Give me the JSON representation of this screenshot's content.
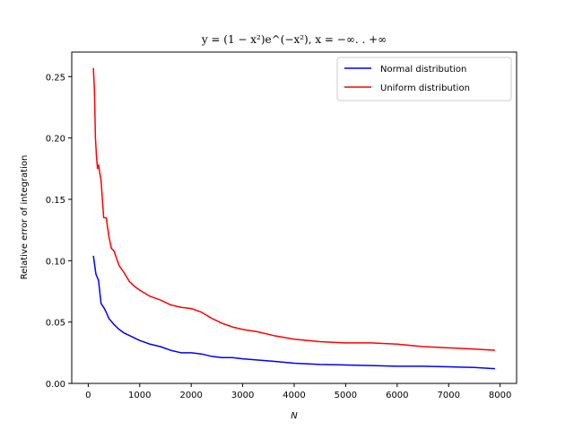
{
  "chart_data": {
    "type": "line",
    "title": "y = (1 − x²)e^(−x²),  x = −∞. . +∞",
    "xlabel": "N",
    "ylabel": "Relative error of integration",
    "xlim": [
      -320,
      8320
    ],
    "ylim": [
      0.0,
      0.27
    ],
    "xticks": [
      0,
      1000,
      2000,
      3000,
      4000,
      5000,
      6000,
      7000,
      8000
    ],
    "yticks": [
      0.0,
      0.05,
      0.1,
      0.15,
      0.2,
      0.25
    ],
    "xtick_labels": [
      "0",
      "1000",
      "2000",
      "3000",
      "4000",
      "5000",
      "6000",
      "7000",
      "8000"
    ],
    "ytick_labels": [
      "0.00",
      "0.05",
      "0.10",
      "0.15",
      "0.20",
      "0.25"
    ],
    "grid": false,
    "legend_position": "top-right",
    "series": [
      {
        "name": "Normal distribution",
        "color": "#0000ff",
        "points": [
          [
            100,
            0.104
          ],
          [
            150,
            0.089
          ],
          [
            200,
            0.084
          ],
          [
            250,
            0.065
          ],
          [
            300,
            0.062
          ],
          [
            350,
            0.058
          ],
          [
            400,
            0.053
          ],
          [
            500,
            0.048
          ],
          [
            600,
            0.044
          ],
          [
            700,
            0.041
          ],
          [
            800,
            0.039
          ],
          [
            900,
            0.037
          ],
          [
            1000,
            0.035
          ],
          [
            1200,
            0.032
          ],
          [
            1400,
            0.03
          ],
          [
            1600,
            0.027
          ],
          [
            1800,
            0.025
          ],
          [
            2000,
            0.025
          ],
          [
            2200,
            0.024
          ],
          [
            2400,
            0.022
          ],
          [
            2600,
            0.021
          ],
          [
            2800,
            0.021
          ],
          [
            3000,
            0.02
          ],
          [
            3300,
            0.019
          ],
          [
            3600,
            0.018
          ],
          [
            4000,
            0.0165
          ],
          [
            4500,
            0.0155
          ],
          [
            5000,
            0.015
          ],
          [
            5500,
            0.0145
          ],
          [
            6000,
            0.014
          ],
          [
            6500,
            0.014
          ],
          [
            7000,
            0.0135
          ],
          [
            7500,
            0.013
          ],
          [
            7900,
            0.012
          ]
        ]
      },
      {
        "name": "Uniform distribution",
        "color": "#ff0000",
        "points": [
          [
            100,
            0.257
          ],
          [
            120,
            0.24
          ],
          [
            140,
            0.2
          ],
          [
            160,
            0.185
          ],
          [
            180,
            0.175
          ],
          [
            200,
            0.178
          ],
          [
            250,
            0.165
          ],
          [
            300,
            0.135
          ],
          [
            350,
            0.135
          ],
          [
            400,
            0.12
          ],
          [
            450,
            0.11
          ],
          [
            500,
            0.108
          ],
          [
            600,
            0.096
          ],
          [
            700,
            0.09
          ],
          [
            800,
            0.083
          ],
          [
            900,
            0.079
          ],
          [
            1000,
            0.076
          ],
          [
            1200,
            0.071
          ],
          [
            1400,
            0.068
          ],
          [
            1600,
            0.064
          ],
          [
            1800,
            0.062
          ],
          [
            2000,
            0.061
          ],
          [
            2200,
            0.058
          ],
          [
            2400,
            0.053
          ],
          [
            2600,
            0.049
          ],
          [
            2800,
            0.046
          ],
          [
            3000,
            0.044
          ],
          [
            3300,
            0.042
          ],
          [
            3600,
            0.039
          ],
          [
            4000,
            0.036
          ],
          [
            4500,
            0.034
          ],
          [
            5000,
            0.033
          ],
          [
            5500,
            0.033
          ],
          [
            6000,
            0.032
          ],
          [
            6500,
            0.03
          ],
          [
            7000,
            0.029
          ],
          [
            7500,
            0.028
          ],
          [
            7900,
            0.027
          ]
        ]
      }
    ]
  }
}
